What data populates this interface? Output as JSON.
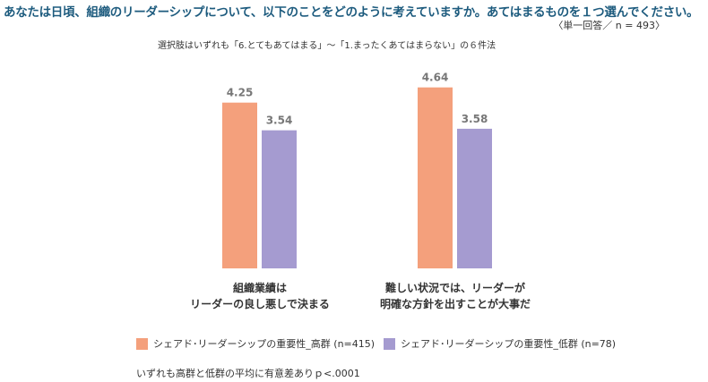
{
  "title": "あなたは日頃、組織のリーダーシップについて、以下のことをどのように考えていますか。あてはまるものを１つ選んでください。",
  "subtitle": "〈単一回答／ n = 493〉",
  "scale_note": "選択肢はいずれも「6.とてもあてはまる」〜「1.まったくあてはまらない」の６件法",
  "footnote": "いずれも高群と低群の平均に有意差ありｐ<.0001",
  "chart_data": {
    "type": "bar",
    "categories": [
      "組織業績は\nリーダーの良し悪しで決まる",
      "難しい状況では、リーダーが\n明確な方針を出すことが大事だ"
    ],
    "series": [
      {
        "name": "シェアド･リーダーシップの重要性_高群 (n=415)",
        "values": [
          4.25,
          4.64
        ],
        "color": "#F4A07C"
      },
      {
        "name": "シェアド･リーダーシップの重要性_低群 (n=78)",
        "values": [
          3.54,
          3.58
        ],
        "color": "#A59BD0"
      }
    ],
    "data_labels": [
      "4.25",
      "3.54",
      "4.64",
      "3.58"
    ],
    "legend": "bottom",
    "grid": false
  }
}
